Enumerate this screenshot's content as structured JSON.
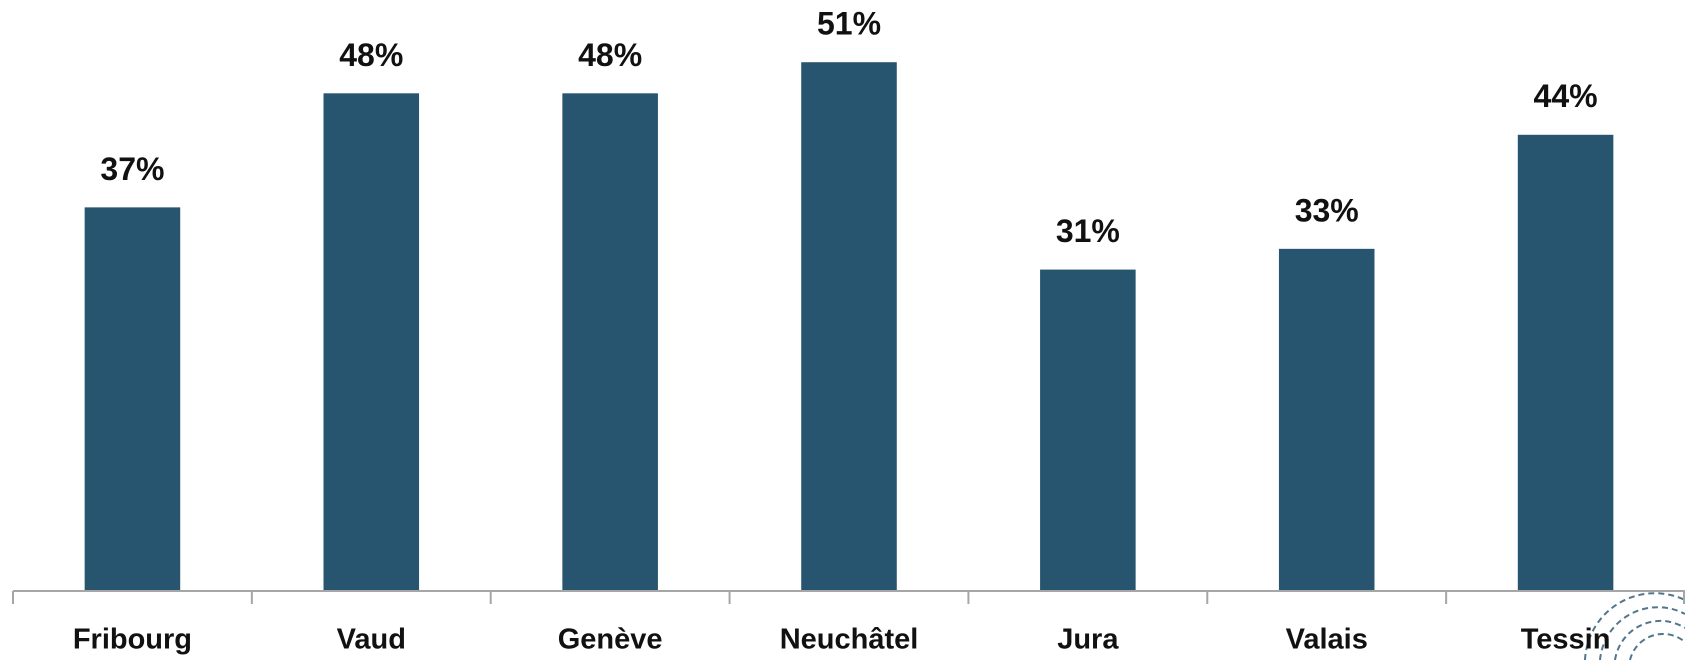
{
  "chart_data": {
    "type": "bar",
    "categories": [
      "Fribourg",
      "Vaud",
      "Genève",
      "Neuchâtel",
      "Jura",
      "Valais",
      "Tessin"
    ],
    "values": [
      37,
      48,
      48,
      51,
      31,
      33,
      44
    ],
    "value_labels": [
      "37%",
      "48%",
      "48%",
      "51%",
      "31%",
      "33%",
      "44%"
    ],
    "color": "#27546e",
    "ylim": [
      0,
      57
    ]
  }
}
